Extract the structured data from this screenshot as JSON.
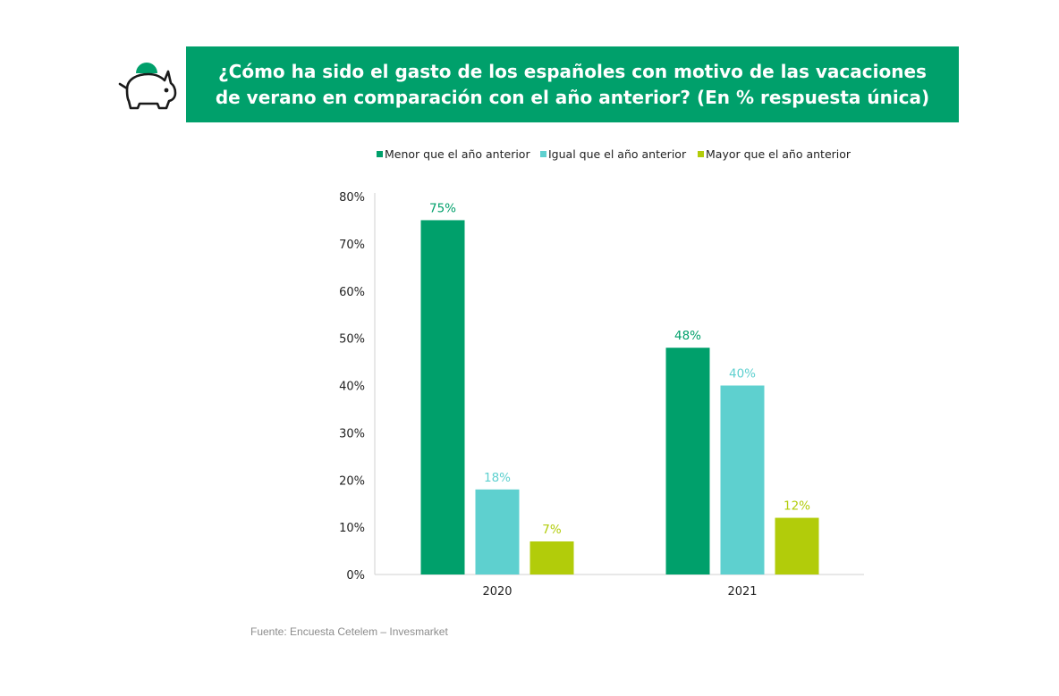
{
  "chart_data": {
    "type": "bar",
    "title": "¿Cómo ha sido el gasto de los españoles con motivo de las vacaciones de verano en comparación con el año anterior? (En % respuesta única)",
    "categories": [
      "2020",
      "2021"
    ],
    "series": [
      {
        "name": "Menor que el año anterior",
        "values": [
          75,
          48
        ],
        "color": "#00a06b"
      },
      {
        "name": "Igual que el año anterior",
        "values": [
          18,
          40
        ],
        "color": "#5ed0cf"
      },
      {
        "name": "Mayor que el año anterior",
        "values": [
          7,
          12
        ],
        "color": "#b2cc0a"
      }
    ],
    "data_labels": [
      [
        "75%",
        "48%"
      ],
      [
        "18%",
        "40%"
      ],
      [
        "7%",
        "12%"
      ]
    ],
    "yticks": [
      0,
      10,
      20,
      30,
      40,
      50,
      60,
      70,
      80
    ],
    "ytick_labels": [
      "0%",
      "10%",
      "20%",
      "30%",
      "40%",
      "50%",
      "60%",
      "70%",
      "80%"
    ],
    "ylim": [
      0,
      80
    ],
    "xlabel": "",
    "ylabel": "",
    "grid": false,
    "legend_position": "top"
  },
  "icon": "piggy-bank-icon",
  "source": "Fuente: Encuesta Cetelem – Invesmarket"
}
